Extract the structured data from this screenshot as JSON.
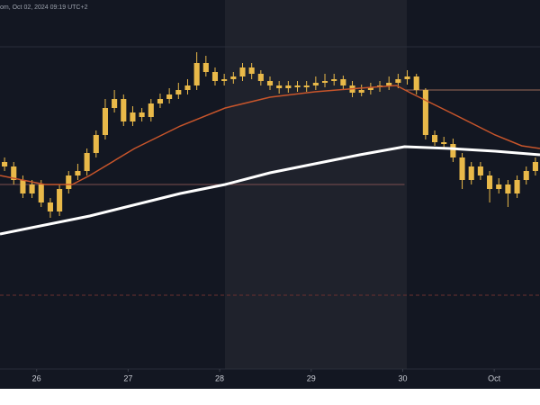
{
  "chart_data": {
    "type": "candlestick",
    "subtitle": "om, Oct 02, 2024 09:19 UTC+2",
    "xlim": [
      25.6,
      31.5
    ],
    "xticks": [
      26,
      27,
      28,
      29,
      30,
      {
        "value": 31,
        "label": "Oct"
      }
    ],
    "ylim": [
      0,
      410
    ],
    "candles": {
      "color": "#e9b949",
      "x": [
        25.65,
        25.75,
        25.85,
        25.95,
        26.05,
        26.15,
        26.25,
        26.35,
        26.45,
        26.55,
        26.65,
        26.75,
        26.85,
        26.95,
        27.05,
        27.15,
        27.25,
        27.35,
        27.45,
        27.55,
        27.65,
        27.75,
        27.85,
        27.95,
        28.05,
        28.15,
        28.25,
        28.35,
        28.45,
        28.55,
        28.65,
        28.75,
        28.85,
        28.95,
        29.05,
        29.15,
        29.25,
        29.35,
        29.45,
        29.55,
        29.65,
        29.75,
        29.85,
        29.95,
        30.05,
        30.15,
        30.25,
        30.35,
        30.45,
        30.55,
        30.65,
        30.75,
        30.85,
        30.95,
        31.05,
        31.15,
        31.25,
        31.35,
        31.45
      ],
      "open": [
        230,
        225,
        210,
        195,
        205,
        185,
        175,
        200,
        215,
        220,
        240,
        260,
        290,
        300,
        275,
        285,
        280,
        295,
        300,
        305,
        310,
        315,
        340,
        330,
        320,
        322,
        325,
        335,
        328,
        320,
        315,
        312,
        315,
        313,
        315,
        318,
        320,
        322,
        315,
        307,
        310,
        313,
        315,
        318,
        322,
        325,
        310,
        260,
        252,
        250,
        235,
        210,
        225,
        215,
        200,
        205,
        195,
        210,
        220
      ],
      "high": [
        235,
        230,
        215,
        210,
        210,
        190,
        205,
        220,
        228,
        245,
        265,
        300,
        310,
        305,
        292,
        290,
        300,
        306,
        312,
        318,
        322,
        352,
        348,
        335,
        328,
        330,
        340,
        340,
        332,
        325,
        320,
        320,
        320,
        320,
        325,
        328,
        328,
        326,
        320,
        316,
        318,
        320,
        325,
        328,
        332,
        328,
        312,
        265,
        258,
        256,
        240,
        230,
        230,
        220,
        212,
        210,
        215,
        225,
        235
      ],
      "low": [
        220,
        205,
        190,
        190,
        180,
        168,
        170,
        195,
        210,
        215,
        235,
        255,
        285,
        270,
        270,
        275,
        275,
        290,
        295,
        300,
        305,
        310,
        325,
        315,
        315,
        317,
        320,
        322,
        315,
        310,
        306,
        307,
        308,
        308,
        310,
        313,
        315,
        310,
        302,
        303,
        305,
        308,
        310,
        312,
        316,
        305,
        255,
        248,
        245,
        230,
        200,
        205,
        210,
        185,
        195,
        180,
        190,
        205,
        215
      ],
      "close": [
        225,
        210,
        195,
        205,
        185,
        175,
        200,
        215,
        220,
        240,
        260,
        290,
        300,
        275,
        285,
        280,
        295,
        300,
        305,
        310,
        315,
        340,
        330,
        320,
        322,
        325,
        335,
        328,
        320,
        315,
        312,
        315,
        313,
        315,
        318,
        320,
        322,
        315,
        307,
        310,
        313,
        315,
        318,
        322,
        325,
        310,
        260,
        252,
        250,
        235,
        210,
        225,
        215,
        200,
        205,
        195,
        210,
        220,
        230
      ]
    },
    "series": [
      {
        "color": "#c8552b",
        "x": [
          25.6,
          26.09,
          26.39,
          26.58,
          27.07,
          27.57,
          28.06,
          28.55,
          29.04,
          29.53,
          29.93,
          30.12,
          30.52,
          31.01,
          31.3,
          31.5
        ],
        "values": [
          215,
          205,
          205,
          215,
          245,
          270,
          290,
          302,
          308,
          312,
          315,
          305,
          285,
          260,
          248,
          245
        ]
      },
      {
        "color": "#ffffff",
        "x": [
          25.6,
          26.58,
          27.57,
          28.06,
          28.55,
          29.04,
          29.53,
          30.02,
          30.52,
          31.01,
          31.5
        ],
        "values": [
          150,
          170,
          195,
          205,
          218,
          228,
          238,
          247,
          245,
          242,
          238
        ]
      }
    ],
    "levels": [
      {
        "value": 310,
        "from": 30.02,
        "to": 31.5,
        "color": "#9b6a55"
      },
      {
        "value": 205,
        "from": 25.6,
        "to": 30.02,
        "color": "#7d4f4f"
      },
      {
        "value": 82,
        "from": 25.6,
        "to": 31.5,
        "color": "#6b3030"
      },
      {
        "value": 358,
        "from": 25.6,
        "to": 31.5,
        "color": "#2a2e3a"
      }
    ]
  }
}
